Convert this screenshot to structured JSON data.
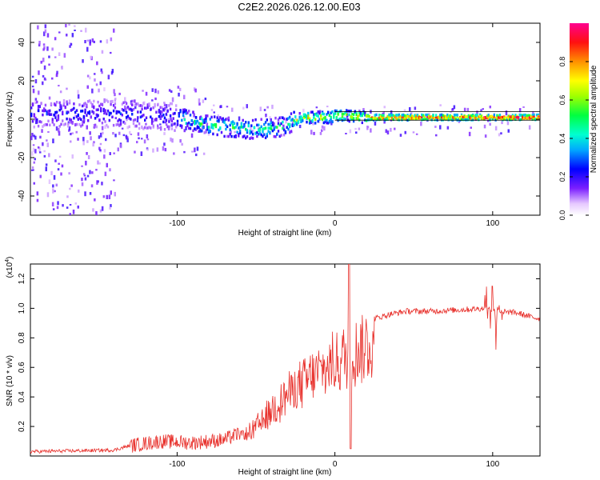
{
  "title": "C2E2.2026.026.12.00.E03",
  "chart_data": [
    {
      "type": "heatmap",
      "name": "doppler-spectrogram",
      "xlabel": "Height of straight line (km)",
      "ylabel": "Frequency (Hz)",
      "xlim": [
        -193,
        130
      ],
      "ylim": [
        -50,
        50
      ],
      "xticks": [
        -100,
        0,
        100
      ],
      "xtick_labels": [
        "-100",
        "0",
        "100"
      ],
      "yticks": [
        -40,
        -20,
        0,
        20,
        40
      ],
      "ytick_labels": [
        "-40",
        "-20",
        "0",
        "20",
        "40"
      ],
      "ridge": {
        "x": [
          -190,
          -160,
          -140,
          -120,
          -100,
          -80,
          -60,
          -45,
          -35,
          -25,
          -15,
          -5,
          0,
          5,
          20,
          40,
          60,
          80,
          100,
          130
        ],
        "freq": [
          3,
          3,
          3,
          2,
          1,
          -3,
          -5,
          -5,
          -4,
          0,
          1,
          1,
          2,
          2,
          1,
          1,
          1,
          1,
          1,
          1
        ]
      },
      "colorbar": {
        "label": "Normalized spectral amplitude",
        "range": [
          0,
          1
        ],
        "ticks": [
          0.0,
          0.2,
          0.4,
          0.6,
          0.8
        ],
        "tick_labels": [
          "0.0",
          "0.2",
          "0.4",
          "0.6",
          "0.8"
        ]
      }
    },
    {
      "type": "line",
      "name": "snr-trace",
      "xlabel": "Height of straight line (km)",
      "ylabel": "SNR (10 * v/v)",
      "scale_label": "(x10",
      "scale_exp": "4",
      "scale_close": ")",
      "xlim": [
        -193,
        130
      ],
      "ylim": [
        0,
        1.3
      ],
      "xticks": [
        -100,
        0,
        100
      ],
      "xtick_labels": [
        "-100",
        "0",
        "100"
      ],
      "yticks": [
        0.2,
        0.4,
        0.6,
        0.8,
        1.0,
        1.2
      ],
      "ytick_labels": [
        "0.2",
        "0.4",
        "0.6",
        "0.8",
        "1.0",
        "1.2"
      ],
      "color": "#e8312c",
      "envelope": {
        "x": [
          -193,
          -140,
          -130,
          -110,
          -90,
          -70,
          -55,
          -45,
          -35,
          -25,
          -15,
          -5,
          5,
          15,
          25,
          35,
          45,
          60,
          80,
          95,
          105,
          115,
          125,
          130
        ],
        "y": [
          0.03,
          0.04,
          0.07,
          0.1,
          0.09,
          0.11,
          0.18,
          0.3,
          0.45,
          0.55,
          0.65,
          0.72,
          0.8,
          0.88,
          0.93,
          0.96,
          0.98,
          0.98,
          0.99,
          1.0,
          0.98,
          0.97,
          0.94,
          0.93
        ]
      },
      "annotations": [
        {
          "x": 9,
          "y": 1.3,
          "note": "spike"
        },
        {
          "x": 10,
          "y": 0.05,
          "note": "dip"
        },
        {
          "x": 100,
          "y": 1.15,
          "note": "spike"
        },
        {
          "x": 102,
          "y": 0.72,
          "note": "dip"
        }
      ]
    }
  ]
}
